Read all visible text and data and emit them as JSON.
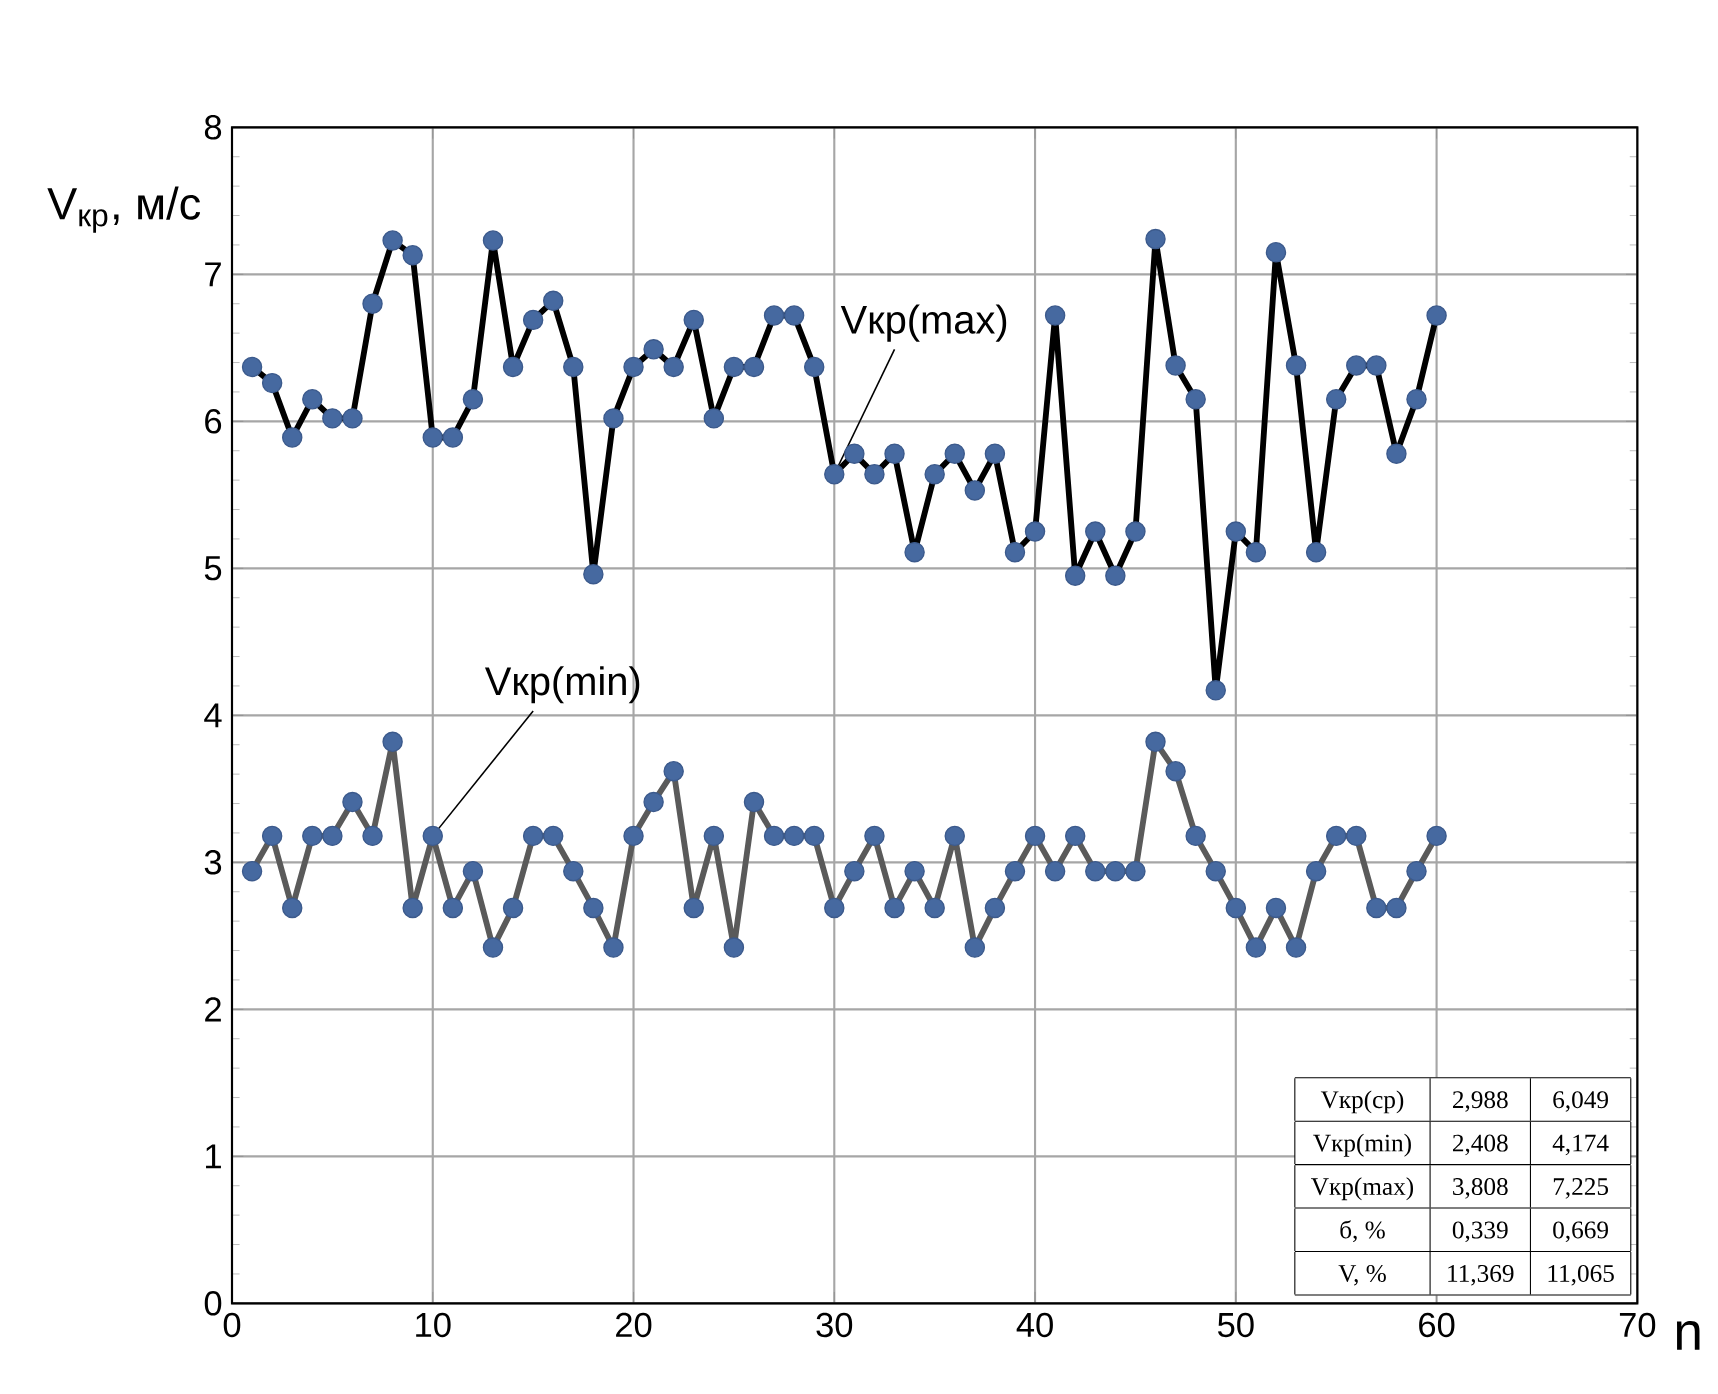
{
  "chart_data": {
    "type": "line",
    "xlabel": "n",
    "ylabel": "V$_{кр}$, м/с",
    "x": [
      1,
      2,
      3,
      4,
      5,
      6,
      7,
      8,
      9,
      10,
      11,
      12,
      13,
      14,
      15,
      16,
      17,
      18,
      19,
      20,
      21,
      22,
      23,
      24,
      25,
      26,
      27,
      28,
      29,
      30,
      31,
      32,
      33,
      34,
      35,
      36,
      37,
      38,
      39,
      40,
      41,
      42,
      43,
      44,
      45,
      46,
      47,
      48,
      49,
      50,
      51,
      52,
      53,
      54,
      55,
      56,
      57,
      58,
      59,
      60
    ],
    "series": [
      {
        "name": "Vкр(max)",
        "color": "#000000",
        "values": [
          6.37,
          6.26,
          5.89,
          6.15,
          6.02,
          6.02,
          6.8,
          7.23,
          7.13,
          5.89,
          5.89,
          6.15,
          7.23,
          6.37,
          6.69,
          6.82,
          6.37,
          4.96,
          6.02,
          6.37,
          6.49,
          6.37,
          6.69,
          6.02,
          6.37,
          6.37,
          6.72,
          6.72,
          6.37,
          5.64,
          5.78,
          5.64,
          5.78,
          5.11,
          5.64,
          5.78,
          5.53,
          5.78,
          5.11,
          5.25,
          6.72,
          4.95,
          5.25,
          4.95,
          5.25,
          7.24,
          6.38,
          6.15,
          4.17,
          5.25,
          5.11,
          7.15,
          6.38,
          5.11,
          6.15,
          6.38,
          6.38,
          5.78,
          6.15,
          6.72
        ]
      },
      {
        "name": "Vкр(min)",
        "color": "#5a5a5a",
        "values": [
          2.94,
          3.18,
          2.69,
          3.18,
          3.18,
          3.41,
          3.18,
          3.82,
          2.69,
          3.18,
          2.69,
          2.94,
          2.42,
          2.69,
          3.18,
          3.18,
          2.94,
          2.69,
          2.42,
          3.18,
          3.41,
          3.62,
          2.69,
          3.18,
          2.42,
          3.41,
          3.18,
          3.18,
          3.18,
          2.69,
          2.94,
          3.18,
          2.69,
          2.94,
          2.69,
          3.18,
          2.42,
          2.69,
          2.94,
          3.18,
          2.94,
          3.18,
          2.94,
          2.94,
          2.94,
          3.82,
          3.62,
          3.18,
          2.94,
          2.69,
          2.42,
          2.69,
          2.42,
          2.94,
          3.18,
          3.18,
          2.69,
          2.69,
          2.94,
          3.18
        ]
      }
    ],
    "xlim": [
      0,
      70
    ],
    "ylim": [
      0,
      8
    ],
    "xticks": [
      0,
      10,
      20,
      30,
      40,
      50,
      60,
      70
    ],
    "yticks": [
      0,
      1,
      2,
      3,
      4,
      5,
      6,
      7,
      8
    ],
    "grid": true,
    "marker": "circle",
    "line_style": "solid",
    "annotations": [
      "Vкр(ср)",
      "2,988",
      "6,049",
      "Vкр(min)",
      "2,408",
      "4,174",
      "Vкр(max)",
      "3,808",
      "7,225",
      "б, %",
      "0,339",
      "0,669",
      "V, %",
      "11,369",
      "11,065"
    ]
  }
}
